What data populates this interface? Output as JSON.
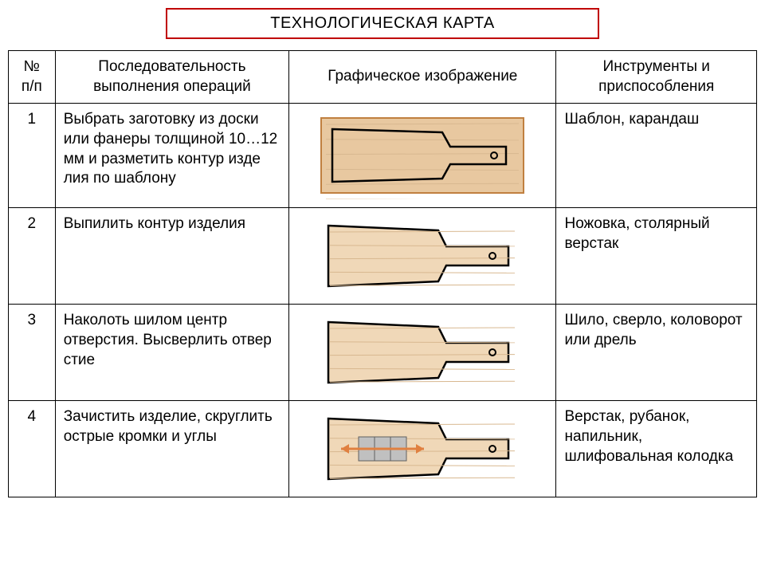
{
  "title": "ТЕХНОЛОГИЧЕСКАЯ КАРТА",
  "colors": {
    "title_border": "#c00000",
    "table_border": "#000000",
    "wood_fill": "#f0d8b8",
    "wood_grain": "#d8b890",
    "outline": "#000000",
    "rect_fill": "#e8c8a0",
    "rect_border": "#c08040",
    "arrow": "#e08040",
    "sanding_block": "#c0c0c0"
  },
  "headers": {
    "num": "№ п/п",
    "seq": "Последовательность выполнения операций",
    "graphic": "Графическое изображение",
    "tools": "Инструменты и приспособления"
  },
  "rows": [
    {
      "num": "1",
      "seq": "Выбрать заготовку из доски или фане​ры толщиной 10…12 мм и разме​тить контур изде​лия по шаблону",
      "tools": "Шаблон, карандаш",
      "graphic": "rect_outline"
    },
    {
      "num": "2",
      "seq": "Выпилить контур изделия",
      "tools": "Ножовка, столярный верстак",
      "graphic": "cutout"
    },
    {
      "num": "3",
      "seq": "Наколоть шилом центр отверстия. Высверлить отвер​стие",
      "tools": "Шило, сверло, коловорот или дрель",
      "graphic": "drilled"
    },
    {
      "num": "4",
      "seq": "Зачистить изделие, скруглить острые кромки и углы",
      "tools": "Верстак, руба​нок, напильник, шлифовальная колодка",
      "graphic": "sanding"
    }
  ]
}
